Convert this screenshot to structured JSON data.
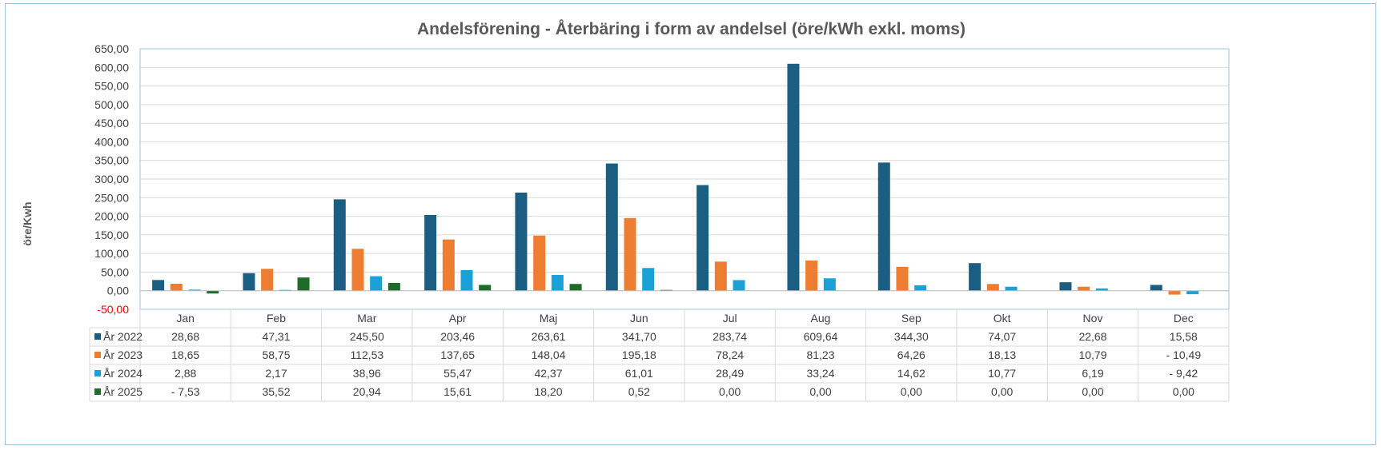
{
  "chart_data": {
    "type": "bar",
    "title": "Andelsförening - Återbäring i form av andelsel (öre/kWh exkl. moms)",
    "ylabel": "öre/Kwh",
    "xlabel": "",
    "ylim": [
      -50,
      650
    ],
    "y_ticks": [
      650,
      600,
      550,
      500,
      450,
      400,
      350,
      300,
      250,
      200,
      150,
      100,
      50,
      0,
      -50
    ],
    "y_tick_labels": [
      "650,00",
      "600,00",
      "550,00",
      "500,00",
      "450,00",
      "400,00",
      "350,00",
      "300,00",
      "250,00",
      "200,00",
      "150,00",
      "100,00",
      "50,00",
      "0,00",
      "-50,00"
    ],
    "negative_tick_color": "#ff0000",
    "grid": true,
    "legend": "data-table",
    "categories": [
      "Jan",
      "Feb",
      "Mar",
      "Apr",
      "Maj",
      "Jun",
      "Jul",
      "Aug",
      "Sep",
      "Okt",
      "Nov",
      "Dec"
    ],
    "series": [
      {
        "name": "År 2022",
        "color": "#1b5e82",
        "values": [
          28.68,
          47.31,
          245.5,
          203.46,
          263.61,
          341.7,
          283.74,
          609.64,
          344.3,
          74.07,
          22.68,
          15.58
        ],
        "labels": [
          "28,68",
          "47,31",
          "245,50",
          "203,46",
          "263,61",
          "341,70",
          "283,74",
          "609,64",
          "344,30",
          "74,07",
          "22,68",
          "15,58"
        ]
      },
      {
        "name": "År 2023",
        "color": "#ed7d31",
        "values": [
          18.65,
          58.75,
          112.53,
          137.65,
          148.04,
          195.18,
          78.24,
          81.23,
          64.26,
          18.13,
          10.79,
          -10.49
        ],
        "labels": [
          "18,65",
          "58,75",
          "112,53",
          "137,65",
          "148,04",
          "195,18",
          "78,24",
          "81,23",
          "64,26",
          "18,13",
          "10,79",
          "- 10,49"
        ]
      },
      {
        "name": "År 2024",
        "color": "#1ba1d8",
        "values": [
          2.88,
          2.17,
          38.96,
          55.47,
          42.37,
          61.01,
          28.49,
          33.24,
          14.62,
          10.77,
          6.19,
          -9.42
        ],
        "labels": [
          "2,88",
          "2,17",
          "38,96",
          "55,47",
          "42,37",
          "61,01",
          "28,49",
          "33,24",
          "14,62",
          "10,77",
          "6,19",
          "- 9,42"
        ]
      },
      {
        "name": "År 2025",
        "color": "#1e6b2a",
        "values": [
          -7.53,
          35.52,
          20.94,
          15.61,
          18.2,
          0.52,
          0.0,
          0.0,
          0.0,
          0.0,
          0.0,
          0.0
        ],
        "labels": [
          "- 7,53",
          "35,52",
          "20,94",
          "15,61",
          "18,20",
          "0,52",
          "0,00",
          "0,00",
          "0,00",
          "0,00",
          "0,00",
          "0,00"
        ]
      }
    ]
  }
}
